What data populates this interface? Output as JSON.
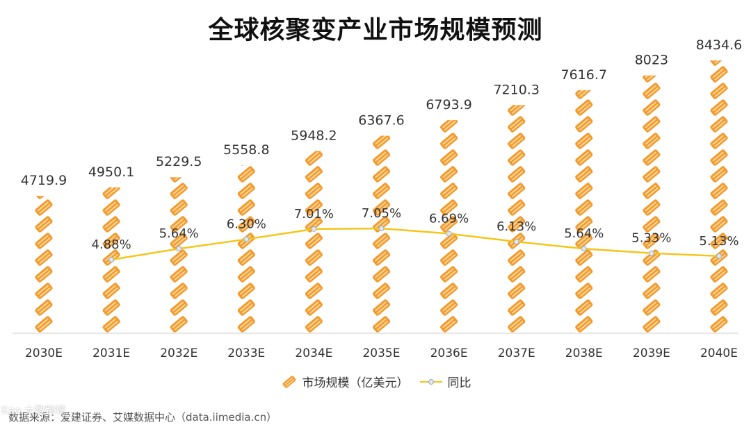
{
  "title": "全球核聚变产业市场规模预测",
  "chart_data": {
    "type": "bar",
    "categories": [
      "2030E",
      "2031E",
      "2032E",
      "2033E",
      "2034E",
      "2035E",
      "2036E",
      "2037E",
      "2038E",
      "2039E",
      "2040E"
    ],
    "series": [
      {
        "name": "市场规模（亿美元）",
        "type": "bar",
        "values": [
          4719.9,
          4950.1,
          5229.5,
          5558.8,
          5948.2,
          6367.6,
          6793.9,
          7210.3,
          7616.7,
          8023,
          8434.6
        ],
        "labels": [
          "4719.9",
          "4950.1",
          "5229.5",
          "5558.8",
          "5948.2",
          "6367.6",
          "6793.9",
          "7210.3",
          "7616.7",
          "8023",
          "8434.6"
        ]
      },
      {
        "name": "同比",
        "type": "line",
        "values": [
          null,
          4.88,
          5.64,
          6.3,
          7.01,
          7.05,
          6.69,
          6.13,
          5.64,
          5.33,
          5.13
        ],
        "labels": [
          "",
          "4.88%",
          "5.64%",
          "6.30%",
          "7.01%",
          "7.05%",
          "6.69%",
          "6.13%",
          "5.64%",
          "5.33%",
          "5.13%"
        ]
      }
    ],
    "colors": {
      "bar": "#f39a2e",
      "line": "#f5c518"
    },
    "legend_position": "bottom",
    "grid": false
  },
  "legend": {
    "bar_label": "市场规模（亿美元）",
    "line_label": "同比"
  },
  "source": "数据来源：爱建证券、艾媒数据中心（data.iimedia.cn）",
  "watermark": "Kao 大数跨境"
}
